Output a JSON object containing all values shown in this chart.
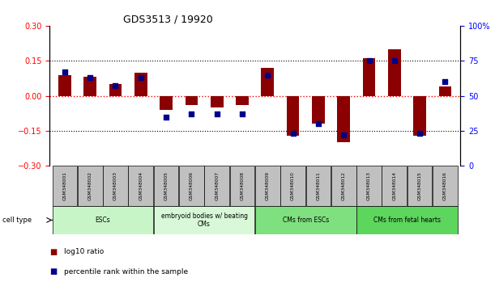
{
  "title": "GDS3513 / 19920",
  "samples": [
    "GSM348001",
    "GSM348002",
    "GSM348003",
    "GSM348004",
    "GSM348005",
    "GSM348006",
    "GSM348007",
    "GSM348008",
    "GSM348009",
    "GSM348010",
    "GSM348011",
    "GSM348012",
    "GSM348013",
    "GSM348014",
    "GSM348015",
    "GSM348016"
  ],
  "log10_ratio": [
    0.09,
    0.08,
    0.05,
    0.1,
    -0.06,
    -0.04,
    -0.05,
    -0.04,
    0.12,
    -0.17,
    -0.12,
    -0.2,
    0.16,
    0.2,
    -0.17,
    0.04
  ],
  "percentile_rank": [
    67,
    63,
    57,
    63,
    35,
    37,
    37,
    37,
    65,
    23,
    30,
    22,
    75,
    75,
    23,
    60
  ],
  "cell_type_groups": [
    {
      "label": "ESCs",
      "start": 0,
      "end": 3
    },
    {
      "label": "embryoid bodies w/ beating\nCMs",
      "start": 4,
      "end": 7
    },
    {
      "label": "CMs from ESCs",
      "start": 8,
      "end": 11
    },
    {
      "label": "CMs from fetal hearts",
      "start": 12,
      "end": 15
    }
  ],
  "ylim_left": [
    -0.3,
    0.3
  ],
  "ylim_right": [
    0,
    100
  ],
  "yticks_left": [
    -0.3,
    -0.15,
    0,
    0.15,
    0.3
  ],
  "yticks_right": [
    0,
    25,
    50,
    75,
    100
  ],
  "bar_color": "#8B0000",
  "dot_color": "#00008B",
  "bar_width": 0.5,
  "dot_size": 16,
  "title_fontsize": 9,
  "tick_fontsize": 7,
  "legend_label_log10": "log10 ratio",
  "legend_label_pct": "percentile rank within the sample",
  "cell_type_label": "cell type",
  "bg_color_gsm": "#C0C0C0",
  "bg_color_ct_esc": "#c8f5c8",
  "bg_color_ct_eb": "#d8f8d8",
  "bg_color_ct_cm": "#7FE07F",
  "bg_color_ct_fetal": "#5CD65C"
}
